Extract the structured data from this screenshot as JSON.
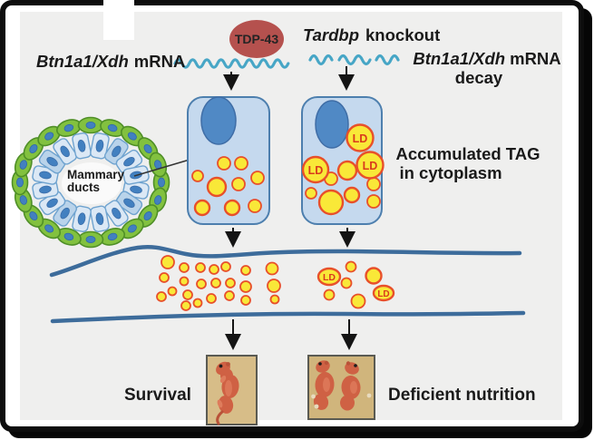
{
  "figure": {
    "left_label": {
      "gene": "Btn1a1/Xdh",
      "suffix": "mRNA"
    },
    "tdp43": "TDP-43",
    "right_label": {
      "gene": "Tardbp",
      "suffix": "knockout"
    },
    "decay": {
      "gene": "Btn1a1/Xdh",
      "suffix": "mRNA",
      "word": "decay"
    },
    "tag": {
      "line1": "Accumulated TAG",
      "line2": "in cytoplasm"
    },
    "mammary": {
      "line1": "Mammary",
      "line2": "ducts"
    },
    "ld": "LD",
    "survival": "Survival",
    "deficient": "Deficient nutrition"
  },
  "colors": {
    "bg": "#efefee",
    "frame": "#0d0d0d",
    "text": "#1a1a1a",
    "arrow": "#141414",
    "wave": "#47a6c6",
    "tdp-fill": "#b5514e",
    "tdp-text": "#242424",
    "cell-fill": "#c5d9ee",
    "cell-stroke": "#4d7fae",
    "nucleus-fill": "#5089c5",
    "nucleus-stroke": "#3f6da6",
    "drop-fill": "#f9e838",
    "drop-stroke": "#e8502a",
    "ld-text": "#d93a1c",
    "duct": "#3d6c9b",
    "green-fill": "#82c13f",
    "green-stroke": "#4f8f27",
    "epi-fill": "#dbe8f5",
    "epi-fill-alt": "#b9d3ea",
    "epi-stroke": "#6fa3cf",
    "inner-nucleus": "#4280c0",
    "photo1-bg": "#d7bd88",
    "photo2-bg": "#d0b57c",
    "photo-border": "#5a5a52",
    "mouse": "#cf6144",
    "mouse-dark": "#b95238",
    "mouse-light": "#de7c5c"
  }
}
